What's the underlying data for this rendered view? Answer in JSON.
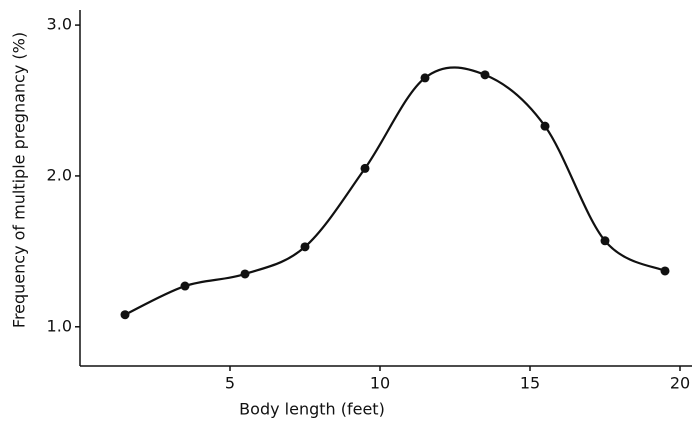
{
  "chart_data": {
    "type": "line",
    "xlabel": "Body length (feet)",
    "ylabel": "Frequency of multiple pregnancy (%)",
    "x": [
      1.5,
      3.5,
      5.5,
      7.5,
      9.5,
      11.5,
      13.5,
      15.5,
      17.5,
      19.5
    ],
    "series": [
      {
        "color": "#111111",
        "values": [
          1.08,
          1.27,
          1.35,
          1.53,
          2.05,
          2.65,
          2.67,
          2.33,
          1.57,
          1.37
        ]
      }
    ],
    "xlim": [
      0,
      20.4
    ],
    "ylim": [
      0.74,
      3.1
    ],
    "xticks": [
      5,
      10,
      15,
      20
    ],
    "yticks": [
      {
        "value": 1,
        "label": "1.0"
      },
      {
        "value": 2,
        "label": "2.0"
      },
      {
        "value": 3,
        "label": "3.0"
      }
    ]
  }
}
